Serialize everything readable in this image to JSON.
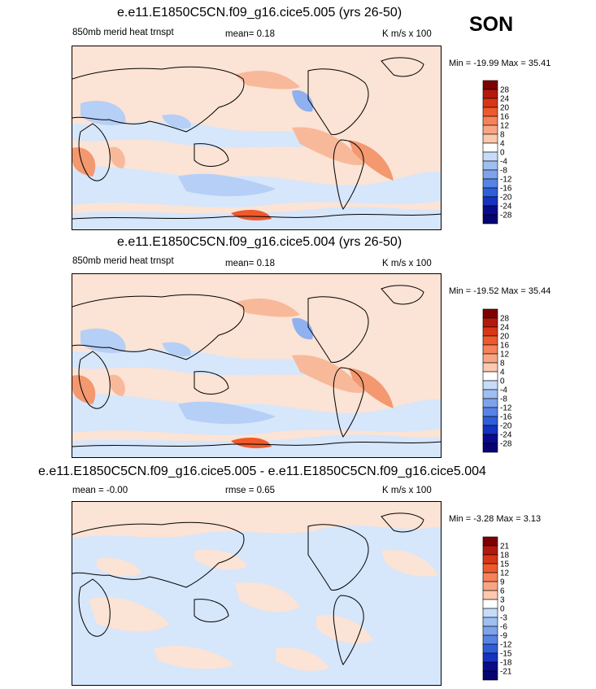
{
  "season": "SON",
  "panels": [
    {
      "title": "e.e11.E1850C5CN.f09_g16.cice5.005 (yrs 26-50)",
      "left_label": "850mb merid heat trnspt",
      "mid_label": "mean=  0.18",
      "units": "K m/s x 100",
      "minmax": "Min = -19.99 Max =  35.41"
    },
    {
      "title": "e.e11.E1850C5CN.f09_g16.cice5.004 (yrs 26-50)",
      "left_label": "850mb merid heat trnspt",
      "mid_label": "mean=  0.18",
      "units": "K m/s x 100",
      "minmax": "Min = -19.52 Max =  35.44"
    },
    {
      "title": "e.e11.E1850C5CN.f09_g16.cice5.005 - e.e11.E1850C5CN.f09_g16.cice5.004",
      "left_label": "mean =  -0.00",
      "mid_label": "rmse =  0.65",
      "units": "K m/s x 100",
      "minmax": "Min =  -3.28 Max =  3.13"
    }
  ],
  "chart_data": [
    {
      "type": "heatmap",
      "projection": "global map, centered 180°",
      "title": "e.e11.E1850C5CN.f09_g16.cice5.005 (yrs 26-50)",
      "variable": "850mb merid heat trnspt",
      "units": "K m/s x 100",
      "mean": 0.18,
      "min": -19.99,
      "max": 35.41,
      "colorbar_levels": [
        28,
        24,
        20,
        16,
        12,
        8,
        4,
        0,
        -4,
        -8,
        -12,
        -16,
        -20,
        -24,
        -28
      ],
      "colorbar_colors": [
        "#7f0000",
        "#b3190d",
        "#d93616",
        "#ee5a2c",
        "#f5825a",
        "#f9a584",
        "#fcc9ae",
        "#ffffff",
        "#c6dcfa",
        "#9ebff2",
        "#7ea3ec",
        "#5784e4",
        "#2f5edb",
        "#1533c0",
        "#0a0a8c",
        "#050470"
      ]
    },
    {
      "type": "heatmap",
      "projection": "global map, centered 180°",
      "title": "e.e11.E1850C5CN.f09_g16.cice5.004 (yrs 26-50)",
      "variable": "850mb merid heat trnspt",
      "units": "K m/s x 100",
      "mean": 0.18,
      "min": -19.52,
      "max": 35.44,
      "colorbar_levels": [
        28,
        24,
        20,
        16,
        12,
        8,
        4,
        0,
        -4,
        -8,
        -12,
        -16,
        -20,
        -24,
        -28
      ],
      "colorbar_colors": [
        "#7f0000",
        "#b3190d",
        "#d93616",
        "#ee5a2c",
        "#f5825a",
        "#f9a584",
        "#fcc9ae",
        "#ffffff",
        "#c6dcfa",
        "#9ebff2",
        "#7ea3ec",
        "#5784e4",
        "#2f5edb",
        "#1533c0",
        "#0a0a8c",
        "#050470"
      ]
    },
    {
      "type": "heatmap",
      "projection": "global map, centered 180°",
      "title": "e.e11.E1850C5CN.f09_g16.cice5.005 - e.e11.E1850C5CN.f09_g16.cice5.004",
      "units": "K m/s x 100",
      "mean": -0.0,
      "rmse": 0.65,
      "min": -3.28,
      "max": 3.13,
      "colorbar_levels": [
        21,
        18,
        15,
        12,
        9,
        6,
        3,
        0,
        -3,
        -6,
        -9,
        -12,
        -15,
        -18,
        -21
      ],
      "colorbar_colors": [
        "#7f0000",
        "#b3190d",
        "#d93616",
        "#ee5a2c",
        "#f5825a",
        "#f9a584",
        "#fcc9ae",
        "#ffffff",
        "#c6dcfa",
        "#9ebff2",
        "#7ea3ec",
        "#5784e4",
        "#2f5edb",
        "#1533c0",
        "#0a0a8c",
        "#050470"
      ]
    }
  ]
}
